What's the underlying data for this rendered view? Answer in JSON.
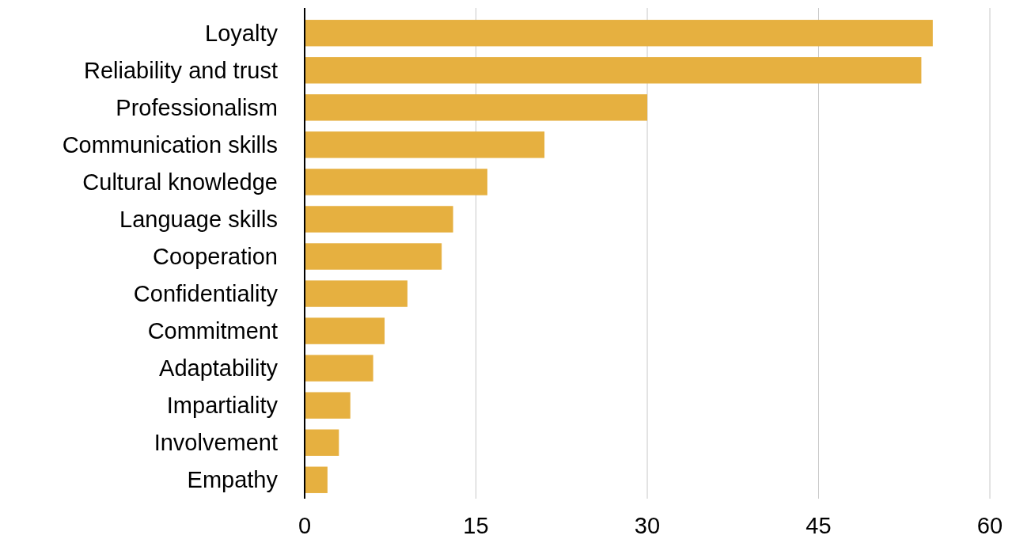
{
  "chart_data": {
    "type": "bar",
    "orientation": "horizontal",
    "categories": [
      "Loyalty",
      "Reliability and trust",
      "Professionalism",
      "Communication skills",
      "Cultural knowledge",
      "Language skills",
      "Cooperation",
      "Confidentiality",
      "Commitment",
      "Adaptability",
      "Impartiality",
      "Involvement",
      "Empathy"
    ],
    "values": [
      55,
      54,
      30,
      21,
      16,
      13,
      12,
      9,
      7,
      6,
      4,
      3,
      2
    ],
    "color": "#e6b040",
    "xlim": [
      0,
      60
    ],
    "xticks": [
      0,
      15,
      30,
      45,
      60
    ],
    "grid": "x"
  }
}
